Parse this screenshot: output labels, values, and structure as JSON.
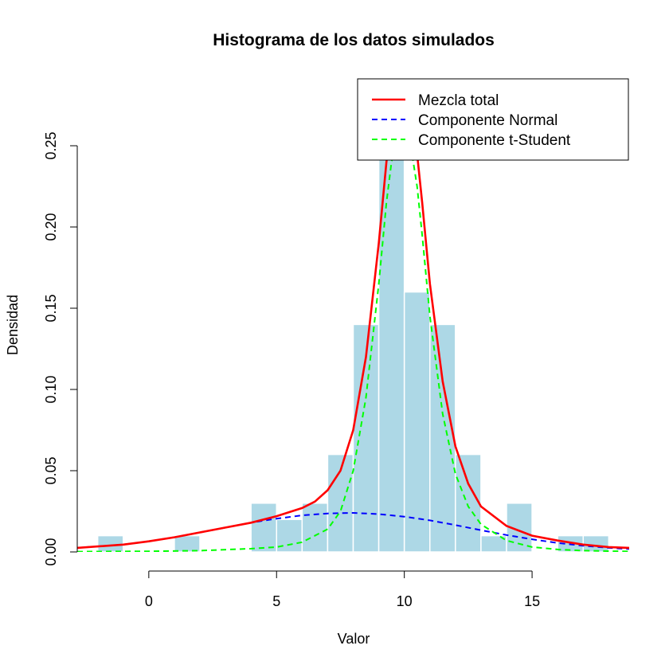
{
  "chart_data": {
    "type": "histogram",
    "title": "Histograma de los datos simulados",
    "xlabel": "Valor",
    "ylabel": "Densidad",
    "xlim": [
      -2.8,
      18.8
    ],
    "ylim": [
      0,
      0.25
    ],
    "x_ticks": [
      0,
      5,
      10,
      15
    ],
    "x_tick_labels": [
      "0",
      "5",
      "10",
      "15"
    ],
    "y_ticks": [
      0,
      0.05,
      0.1,
      0.15,
      0.2,
      0.25
    ],
    "y_tick_labels": [
      "0.00",
      "0.05",
      "0.10",
      "0.15",
      "0.20",
      "0.25"
    ],
    "grid": false,
    "legend_position": "top-right",
    "colors": {
      "bars": "#ADD8E6",
      "bar_border": "#ffffff",
      "mixture": "#FF0000",
      "normal": "#0000FF",
      "tstudent": "#00FF00"
    },
    "bins": [
      {
        "start": -2,
        "end": -1,
        "density": 0.01
      },
      {
        "start": -1,
        "end": 0,
        "density": 0
      },
      {
        "start": 0,
        "end": 1,
        "density": 0
      },
      {
        "start": 1,
        "end": 2,
        "density": 0.01
      },
      {
        "start": 2,
        "end": 3,
        "density": 0
      },
      {
        "start": 3,
        "end": 4,
        "density": 0
      },
      {
        "start": 4,
        "end": 5,
        "density": 0.03
      },
      {
        "start": 5,
        "end": 6,
        "density": 0.02
      },
      {
        "start": 6,
        "end": 7,
        "density": 0.03
      },
      {
        "start": 7,
        "end": 8,
        "density": 0.06
      },
      {
        "start": 8,
        "end": 9,
        "density": 0.14
      },
      {
        "start": 9,
        "end": 10,
        "density": 0.25
      },
      {
        "start": 10,
        "end": 11,
        "density": 0.16
      },
      {
        "start": 11,
        "end": 12,
        "density": 0.14
      },
      {
        "start": 12,
        "end": 13,
        "density": 0.06
      },
      {
        "start": 13,
        "end": 14,
        "density": 0.01
      },
      {
        "start": 14,
        "end": 15,
        "density": 0.03
      },
      {
        "start": 15,
        "end": 16,
        "density": 0
      },
      {
        "start": 16,
        "end": 17,
        "density": 0.01
      },
      {
        "start": 17,
        "end": 18,
        "density": 0.01
      }
    ],
    "series": [
      {
        "name": "Mezcla total",
        "style": "solid",
        "x": [
          -2.8,
          -1,
          0,
          1,
          2,
          3,
          4,
          5,
          6,
          6.5,
          7,
          7.5,
          8,
          8.5,
          9,
          9.3,
          9.5,
          9.7,
          10,
          10.3,
          10.5,
          10.7,
          11,
          11.5,
          12,
          12.5,
          13,
          14,
          15,
          16,
          17,
          18,
          18.8
        ],
        "y": [
          0.0025,
          0.0045,
          0.0065,
          0.009,
          0.012,
          0.015,
          0.018,
          0.022,
          0.027,
          0.031,
          0.038,
          0.05,
          0.075,
          0.12,
          0.19,
          0.24,
          0.262,
          0.272,
          0.275,
          0.265,
          0.245,
          0.215,
          0.165,
          0.105,
          0.065,
          0.042,
          0.028,
          0.016,
          0.01,
          0.007,
          0.0045,
          0.003,
          0.0025
        ]
      },
      {
        "name": "Componente Normal",
        "style": "dashed",
        "x": [
          -2.8,
          -1,
          0,
          1,
          2,
          3,
          4,
          5,
          6,
          7,
          8,
          9,
          10,
          11,
          12,
          13,
          14,
          15,
          16,
          17,
          18,
          18.8
        ],
        "y": [
          0.0025,
          0.0045,
          0.0065,
          0.009,
          0.012,
          0.015,
          0.018,
          0.0205,
          0.0225,
          0.0237,
          0.024,
          0.0233,
          0.0217,
          0.0194,
          0.0165,
          0.0134,
          0.0104,
          0.0078,
          0.0055,
          0.0038,
          0.0025,
          0.0018
        ]
      },
      {
        "name": "Componente t-Student",
        "style": "dashed",
        "x": [
          -2.8,
          0,
          2,
          4,
          5,
          6,
          7,
          7.5,
          8,
          8.5,
          9,
          9.3,
          9.5,
          9.7,
          10,
          10.3,
          10.5,
          10.7,
          11,
          11.5,
          12,
          12.5,
          13,
          14,
          15,
          16,
          17,
          18,
          18.8
        ],
        "y": [
          0.0002,
          0.0004,
          0.0008,
          0.002,
          0.003,
          0.006,
          0.014,
          0.025,
          0.05,
          0.095,
          0.165,
          0.215,
          0.24,
          0.252,
          0.255,
          0.245,
          0.225,
          0.195,
          0.145,
          0.085,
          0.048,
          0.028,
          0.017,
          0.007,
          0.003,
          0.0015,
          0.0008,
          0.0005,
          0.0003
        ]
      }
    ]
  }
}
